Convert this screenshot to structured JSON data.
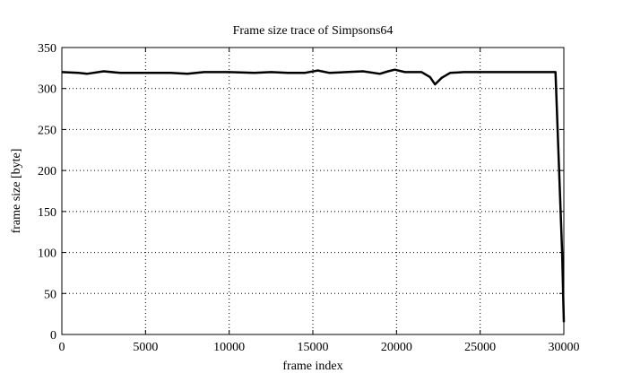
{
  "chart_data": {
    "type": "line",
    "title": "Frame size trace of Simpsons64",
    "xlabel": "frame index",
    "ylabel": "frame size [byte]",
    "xlim": [
      0,
      30000
    ],
    "ylim": [
      0,
      350
    ],
    "xticks": [
      0,
      5000,
      10000,
      15000,
      20000,
      25000,
      30000
    ],
    "yticks": [
      0,
      50,
      100,
      150,
      200,
      250,
      300,
      350
    ],
    "grid": true,
    "grid_style": "dotted",
    "line_color": "#000000",
    "series": [
      {
        "x": [
          0,
          1000,
          1500,
          2500,
          3500,
          5000,
          6500,
          7500,
          8500,
          10000,
          11500,
          12500,
          13500,
          14500,
          15300,
          16000,
          17000,
          18000,
          19000,
          19500,
          19900,
          20500,
          21500,
          22000,
          22300,
          22700,
          23200,
          24000,
          25000,
          26000,
          27000,
          28000,
          29000,
          29500,
          29900,
          30000
        ],
        "y": [
          320,
          319,
          318,
          321,
          319,
          319,
          319,
          318,
          320,
          320,
          319,
          320,
          319,
          319,
          322,
          319,
          320,
          321,
          318,
          321,
          323,
          320,
          320,
          314,
          305,
          313,
          319,
          320,
          320,
          320,
          320,
          320,
          320,
          320,
          100,
          15
        ]
      }
    ]
  }
}
